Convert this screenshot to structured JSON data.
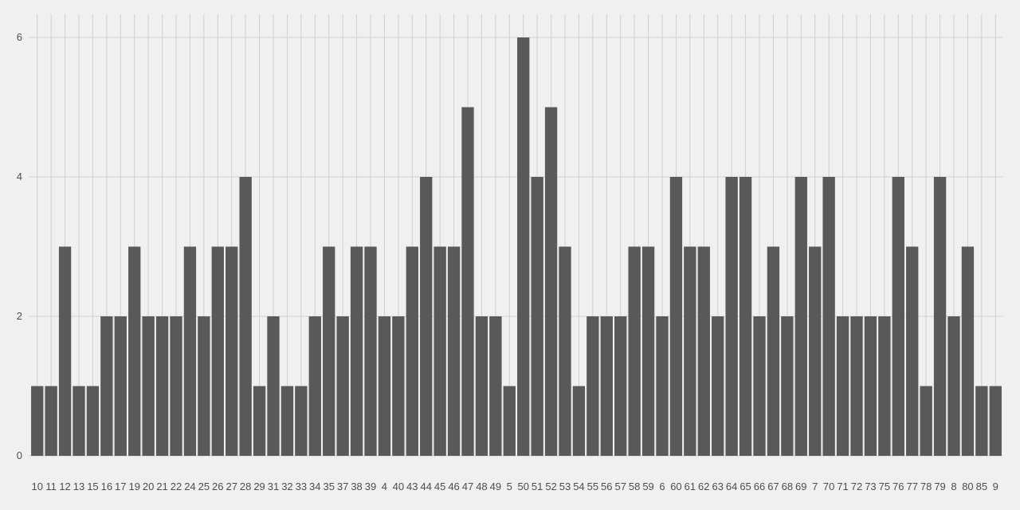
{
  "chart_data": {
    "type": "bar",
    "title": "",
    "xlabel": "",
    "ylabel": "",
    "ylim": [
      0,
      6
    ],
    "yticks": [
      0,
      2,
      4,
      6
    ],
    "grid": true,
    "bar_color": "#595959",
    "background_color": "#f0f0f0",
    "grid_color": "#d0d0d0",
    "categories": [
      "10",
      "11",
      "12",
      "13",
      "15",
      "16",
      "17",
      "19",
      "20",
      "21",
      "22",
      "24",
      "25",
      "26",
      "27",
      "28",
      "29",
      "31",
      "32",
      "33",
      "34",
      "35",
      "37",
      "38",
      "39",
      "4",
      "40",
      "43",
      "44",
      "45",
      "46",
      "47",
      "48",
      "49",
      "5",
      "50",
      "51",
      "52",
      "53",
      "54",
      "55",
      "56",
      "57",
      "58",
      "59",
      "6",
      "60",
      "61",
      "62",
      "63",
      "64",
      "65",
      "66",
      "67",
      "68",
      "69",
      "7",
      "70",
      "71",
      "72",
      "73",
      "75",
      "76",
      "77",
      "78",
      "79",
      "8",
      "80",
      "85",
      "9"
    ],
    "values": [
      1,
      1,
      3,
      1,
      1,
      2,
      2,
      3,
      2,
      2,
      2,
      3,
      2,
      3,
      3,
      4,
      1,
      2,
      1,
      1,
      2,
      3,
      2,
      3,
      3,
      2,
      2,
      3,
      4,
      3,
      3,
      5,
      2,
      2,
      1,
      6,
      4,
      5,
      3,
      1,
      2,
      2,
      2,
      3,
      3,
      2,
      4,
      3,
      3,
      2,
      4,
      4,
      2,
      3,
      2,
      4,
      3,
      4,
      2,
      2,
      2,
      2,
      4,
      3,
      1,
      4,
      2,
      3,
      1,
      1
    ]
  }
}
